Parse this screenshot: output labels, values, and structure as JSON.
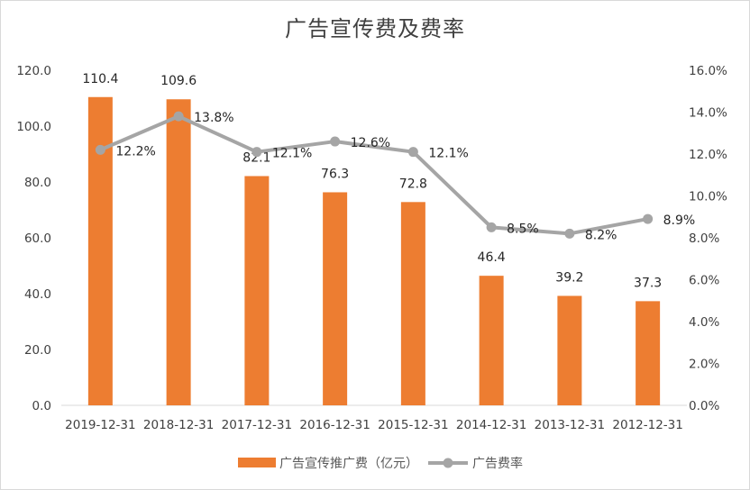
{
  "chart_data": {
    "type": "bar",
    "title": "广告宣传费及费率",
    "categories": [
      "2019-12-31",
      "2018-12-31",
      "2017-12-31",
      "2016-12-31",
      "2015-12-31",
      "2014-12-31",
      "2013-12-31",
      "2012-12-31"
    ],
    "series": [
      {
        "name": "广告宣传推广费（亿元）",
        "type": "bar",
        "axis": "left",
        "color": "#ED7D31",
        "values": [
          110.4,
          109.6,
          82.1,
          76.3,
          72.8,
          46.4,
          39.2,
          37.3
        ],
        "labels": [
          "110.4",
          "109.6",
          "82.1",
          "76.3",
          "72.8",
          "46.4",
          "39.2",
          "37.3"
        ]
      },
      {
        "name": "广告费率",
        "type": "line",
        "axis": "right",
        "color": "#A5A5A5",
        "values": [
          12.2,
          13.8,
          12.1,
          12.6,
          12.1,
          8.5,
          8.2,
          8.9
        ],
        "labels": [
          "12.2%",
          "13.8%",
          "12.1%",
          "12.6%",
          "12.1%",
          "8.5%",
          "8.2%",
          "8.9%"
        ]
      }
    ],
    "y_left": {
      "min": 0,
      "max": 120,
      "ticks": [
        "0.0",
        "20.0",
        "40.0",
        "60.0",
        "80.0",
        "100.0",
        "120.0"
      ]
    },
    "y_right": {
      "min": 0,
      "max": 16,
      "ticks": [
        "0.0%",
        "2.0%",
        "4.0%",
        "6.0%",
        "8.0%",
        "10.0%",
        "12.0%",
        "14.0%",
        "16.0%"
      ]
    },
    "grid": false,
    "legend_position": "bottom"
  }
}
